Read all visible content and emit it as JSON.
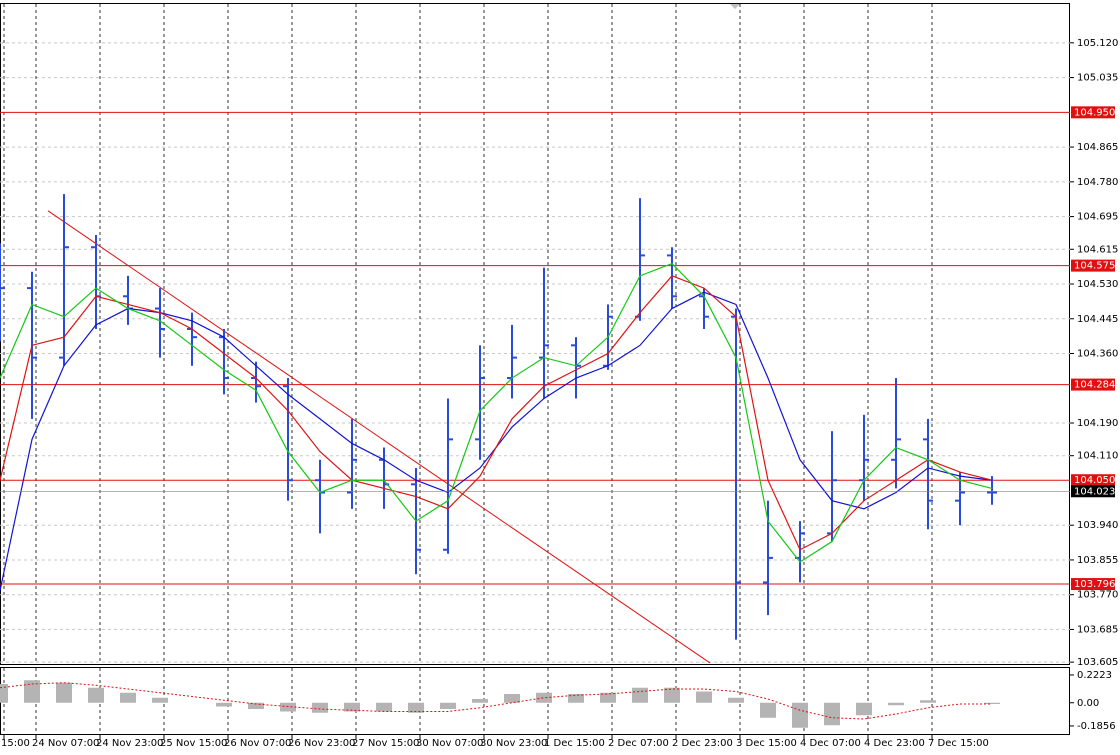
{
  "chart_data": [
    {
      "type": "ohlc",
      "x": [
        0,
        8,
        16,
        24,
        32,
        40,
        48,
        56,
        64,
        72,
        80,
        88,
        96,
        104,
        112,
        120,
        128,
        136,
        144,
        152,
        160,
        168,
        176,
        184,
        192,
        200,
        208,
        216,
        224,
        232,
        240,
        248
      ],
      "open": [
        104.48,
        104.52,
        104.35,
        104.62,
        104.5,
        104.47,
        104.42,
        104.4,
        104.3,
        104.28,
        104.05,
        104.02,
        104.1,
        104.04,
        103.88,
        104.15,
        104.3,
        104.35,
        104.38,
        104.33,
        104.45,
        104.6,
        104.5,
        104.45,
        103.8,
        103.86,
        103.92,
        104.05,
        104.1,
        104.15,
        104.0,
        104.02
      ],
      "high": [
        104.63,
        104.56,
        104.75,
        104.65,
        104.55,
        104.52,
        104.46,
        104.42,
        104.34,
        104.3,
        104.1,
        104.2,
        104.13,
        104.08,
        104.25,
        104.38,
        104.43,
        104.57,
        104.4,
        104.48,
        104.74,
        104.62,
        104.52,
        104.47,
        104.0,
        103.95,
        104.17,
        104.21,
        104.3,
        104.2,
        104.07,
        104.06
      ],
      "low": [
        104.39,
        104.2,
        104.33,
        104.42,
        104.43,
        104.35,
        104.33,
        104.26,
        104.24,
        104.0,
        103.92,
        103.98,
        103.98,
        103.82,
        103.87,
        104.1,
        104.25,
        104.25,
        104.25,
        104.32,
        104.44,
        104.47,
        104.42,
        103.66,
        103.72,
        103.8,
        103.9,
        104.0,
        104.03,
        103.93,
        103.94,
        103.99
      ],
      "close": [
        104.52,
        104.35,
        104.62,
        104.5,
        104.47,
        104.42,
        104.4,
        104.3,
        104.28,
        104.05,
        104.02,
        104.1,
        104.04,
        103.88,
        104.15,
        104.3,
        104.35,
        104.38,
        104.33,
        104.45,
        104.6,
        104.5,
        104.45,
        103.8,
        103.86,
        103.92,
        104.05,
        104.1,
        104.15,
        104.0,
        104.02,
        104.02
      ],
      "color": "#2a4bd7",
      "series": [
        {
          "color": "#1414d2",
          "values": [
            103.78,
            104.15,
            104.33,
            104.43,
            104.47,
            104.46,
            104.44,
            104.4,
            104.33,
            104.26,
            104.2,
            104.14,
            104.1,
            104.05,
            104.02,
            104.08,
            104.18,
            104.25,
            104.3,
            104.33,
            104.38,
            104.47,
            104.51,
            104.48,
            104.3,
            104.1,
            104.0,
            103.98,
            104.02,
            104.08,
            104.06,
            104.05
          ]
        },
        {
          "color": "#dc1414",
          "values": [
            104.05,
            104.38,
            104.4,
            104.5,
            104.48,
            104.46,
            104.42,
            104.36,
            104.3,
            104.22,
            104.12,
            104.05,
            104.03,
            104.01,
            103.98,
            104.06,
            104.2,
            104.28,
            104.32,
            104.36,
            104.46,
            104.55,
            104.52,
            104.45,
            104.05,
            103.88,
            103.92,
            104.0,
            104.05,
            104.1,
            104.07,
            104.05
          ]
        },
        {
          "color": "#14c814",
          "values": [
            104.3,
            104.48,
            104.45,
            104.52,
            104.47,
            104.44,
            104.38,
            104.32,
            104.27,
            104.12,
            104.02,
            104.05,
            104.05,
            103.95,
            104.0,
            104.22,
            104.3,
            104.35,
            104.33,
            104.4,
            104.55,
            104.58,
            104.5,
            104.35,
            103.95,
            103.85,
            103.9,
            104.05,
            104.13,
            104.1,
            104.05,
            104.03
          ]
        }
      ],
      "trendline": {
        "x": [
          12,
          177.5
        ],
        "y": [
          104.709,
          103.603
        ],
        "color": "#e01010"
      },
      "levels": [
        {
          "value": 104.95,
          "label": "104.950"
        },
        {
          "value": 104.575,
          "label": "104.575"
        },
        {
          "value": 104.284,
          "label": "104.284"
        },
        {
          "value": 104.05,
          "label": "104.050"
        },
        {
          "value": 103.796,
          "label": "103.796"
        }
      ],
      "level_color": "#e01010",
      "current_price": 104.023,
      "xlim": [
        0,
        267.5
      ],
      "ylim": [
        103.598,
        105.215
      ],
      "yticks": [
        {
          "value": 105.12,
          "label": "105.120"
        },
        {
          "value": 105.035,
          "label": "105.035"
        },
        {
          "value": 104.865,
          "label": "104.865"
        },
        {
          "value": 104.78,
          "label": "104.780"
        },
        {
          "value": 104.695,
          "label": "104.695"
        },
        {
          "value": 104.615,
          "label": "104.615"
        },
        {
          "value": 104.53,
          "label": "104.530"
        },
        {
          "value": 104.445,
          "label": "104.445"
        },
        {
          "value": 104.36,
          "label": "104.360"
        },
        {
          "value": 104.19,
          "label": "104.190"
        },
        {
          "value": 104.11,
          "label": "104.110"
        },
        {
          "value": 103.94,
          "label": "103.940"
        },
        {
          "value": 103.855,
          "label": "103.855"
        },
        {
          "value": 103.77,
          "label": "103.770"
        },
        {
          "value": 103.685,
          "label": "103.685"
        },
        {
          "value": 103.605,
          "label": "103.605"
        }
      ],
      "grid": true
    },
    {
      "type": "histogram",
      "x": [
        0,
        8,
        16,
        24,
        32,
        40,
        48,
        56,
        64,
        72,
        80,
        88,
        96,
        104,
        112,
        120,
        128,
        136,
        144,
        152,
        160,
        168,
        176,
        184,
        192,
        200,
        208,
        216,
        224,
        232,
        240,
        248
      ],
      "values": [
        0.15,
        0.18,
        0.16,
        0.12,
        0.08,
        0.04,
        0.0,
        -0.03,
        -0.05,
        -0.07,
        -0.08,
        -0.07,
        -0.07,
        -0.08,
        -0.05,
        0.03,
        0.07,
        0.08,
        0.07,
        0.08,
        0.12,
        0.12,
        0.09,
        0.04,
        -0.12,
        -0.2,
        -0.18,
        -0.1,
        -0.02,
        0.02,
        0.0,
        -0.01
      ],
      "color": "#b4b4b4",
      "signal": {
        "color": "#e01010",
        "values": [
          0.12,
          0.15,
          0.16,
          0.14,
          0.11,
          0.08,
          0.05,
          0.02,
          -0.01,
          -0.03,
          -0.05,
          -0.06,
          -0.07,
          -0.07,
          -0.07,
          -0.04,
          0.0,
          0.04,
          0.06,
          0.07,
          0.09,
          0.11,
          0.11,
          0.09,
          0.03,
          -0.06,
          -0.12,
          -0.13,
          -0.09,
          -0.04,
          -0.01,
          -0.01
        ]
      },
      "xlim": [
        0,
        267.5
      ],
      "ylim": [
        -0.258,
        0.278
      ],
      "yticks": [
        0.2223,
        {
          "value": 0,
          "label": "0.00"
        },
        -0.1856
      ],
      "xticks": [
        {
          "value": 1,
          "label": "15:00"
        },
        {
          "value": 9,
          "label": "24 Nov 07:00"
        },
        {
          "value": 25,
          "label": "24 Nov 23:00"
        },
        {
          "value": 41,
          "label": "25 Nov 15:00"
        },
        {
          "value": 57,
          "label": "26 Nov 07:00"
        },
        {
          "value": 73,
          "label": "26 Nov 23:00"
        },
        {
          "value": 89,
          "label": "27 Nov 15:00"
        },
        {
          "value": 105,
          "label": "30 Nov 07:00"
        },
        {
          "value": 121,
          "label": "30 Nov 23:00"
        },
        {
          "value": 137,
          "label": "1 Dec 15:00"
        },
        {
          "value": 153,
          "label": "2 Dec 07:00"
        },
        {
          "value": 169,
          "label": "2 Dec 23:00"
        },
        {
          "value": 185,
          "label": "3 Dec 15:00"
        },
        {
          "value": 201,
          "label": "4 Dec 07:00"
        },
        {
          "value": 217,
          "label": "4 Dec 23:00"
        },
        {
          "value": 233,
          "label": "7 Dec 15:00"
        }
      ]
    }
  ]
}
